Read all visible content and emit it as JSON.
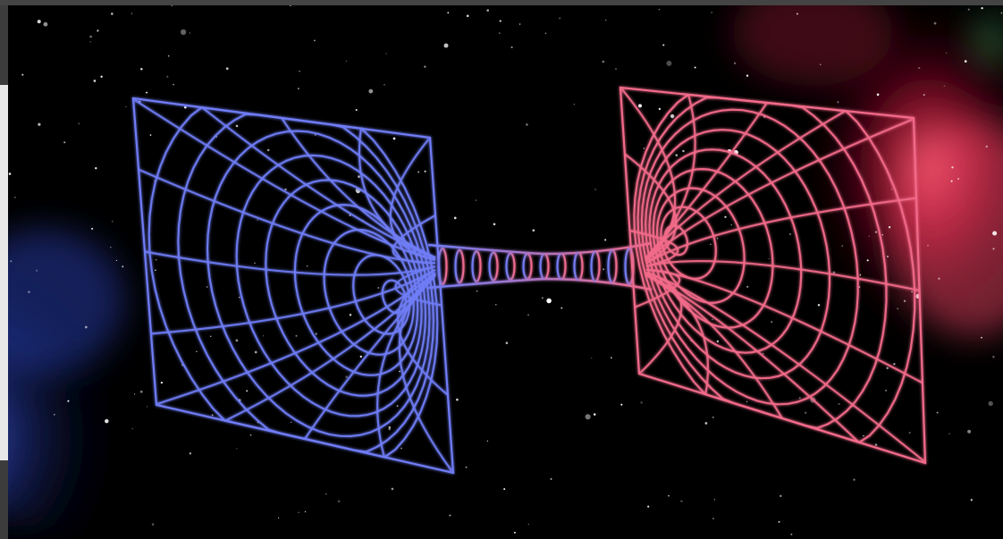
{
  "image": {
    "subject": "wormhole-illustration",
    "colors": {
      "left_mouth": "#6f7cf5",
      "right_mouth": "#f26a8a",
      "space_background": "#000000",
      "left_nebula": "#2a48c8",
      "right_nebula": "#d0203c"
    }
  }
}
